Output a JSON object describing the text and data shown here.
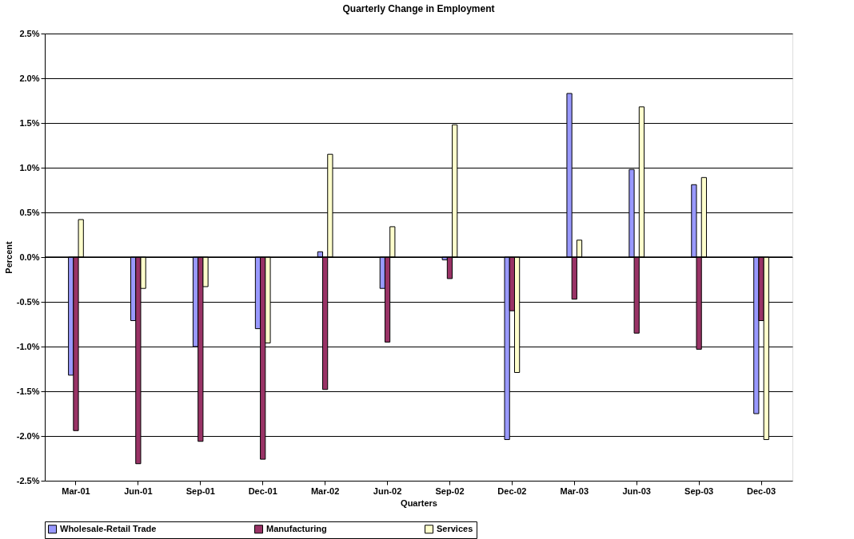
{
  "chart_data": {
    "type": "bar",
    "title": "Quarterly Change in Employment",
    "xlabel": "Quarters",
    "ylabel": "Percent",
    "categories": [
      "Mar-01",
      "Jun-01",
      "Sep-01",
      "Dec-01",
      "Mar-02",
      "Jun-02",
      "Sep-02",
      "Dec-02",
      "Mar-03",
      "Jun-03",
      "Sep-03",
      "Dec-03"
    ],
    "series": [
      {
        "name": "Wholesale-Retail Trade",
        "color": "#9999ff",
        "values": [
          -1.32,
          -0.71,
          -1.0,
          -0.8,
          0.06,
          -0.35,
          -0.03,
          -2.04,
          1.83,
          0.98,
          0.81,
          -1.75
        ]
      },
      {
        "name": "Manufacturing",
        "color": "#993366",
        "values": [
          -1.94,
          -2.31,
          -2.06,
          -2.26,
          -1.48,
          -0.95,
          -0.24,
          -0.6,
          -0.47,
          -0.85,
          -1.03,
          -0.71
        ]
      },
      {
        "name": "Services",
        "color": "#ffffcc",
        "values": [
          0.42,
          -0.35,
          -0.33,
          -0.96,
          1.15,
          0.34,
          1.48,
          -1.29,
          0.19,
          1.68,
          0.89,
          -2.04
        ]
      }
    ],
    "ylim": [
      -2.5,
      2.5
    ],
    "yticks": [
      {
        "value": -2.5,
        "label": "-2.5%"
      },
      {
        "value": -2.0,
        "label": "-2.0%"
      },
      {
        "value": -1.5,
        "label": "-1.5%"
      },
      {
        "value": -1.0,
        "label": "-1.0%"
      },
      {
        "value": -0.5,
        "label": "-0.5%"
      },
      {
        "value": 0,
        "label": "0.0%"
      },
      {
        "value": 0.5,
        "label": "0.5%"
      },
      {
        "value": 1.0,
        "label": "1.0%"
      },
      {
        "value": 1.5,
        "label": "1.5%"
      },
      {
        "value": 2.0,
        "label": "2.0%"
      },
      {
        "value": 2.5,
        "label": "2.5%"
      }
    ],
    "grid": "y",
    "legend": "bottom"
  }
}
